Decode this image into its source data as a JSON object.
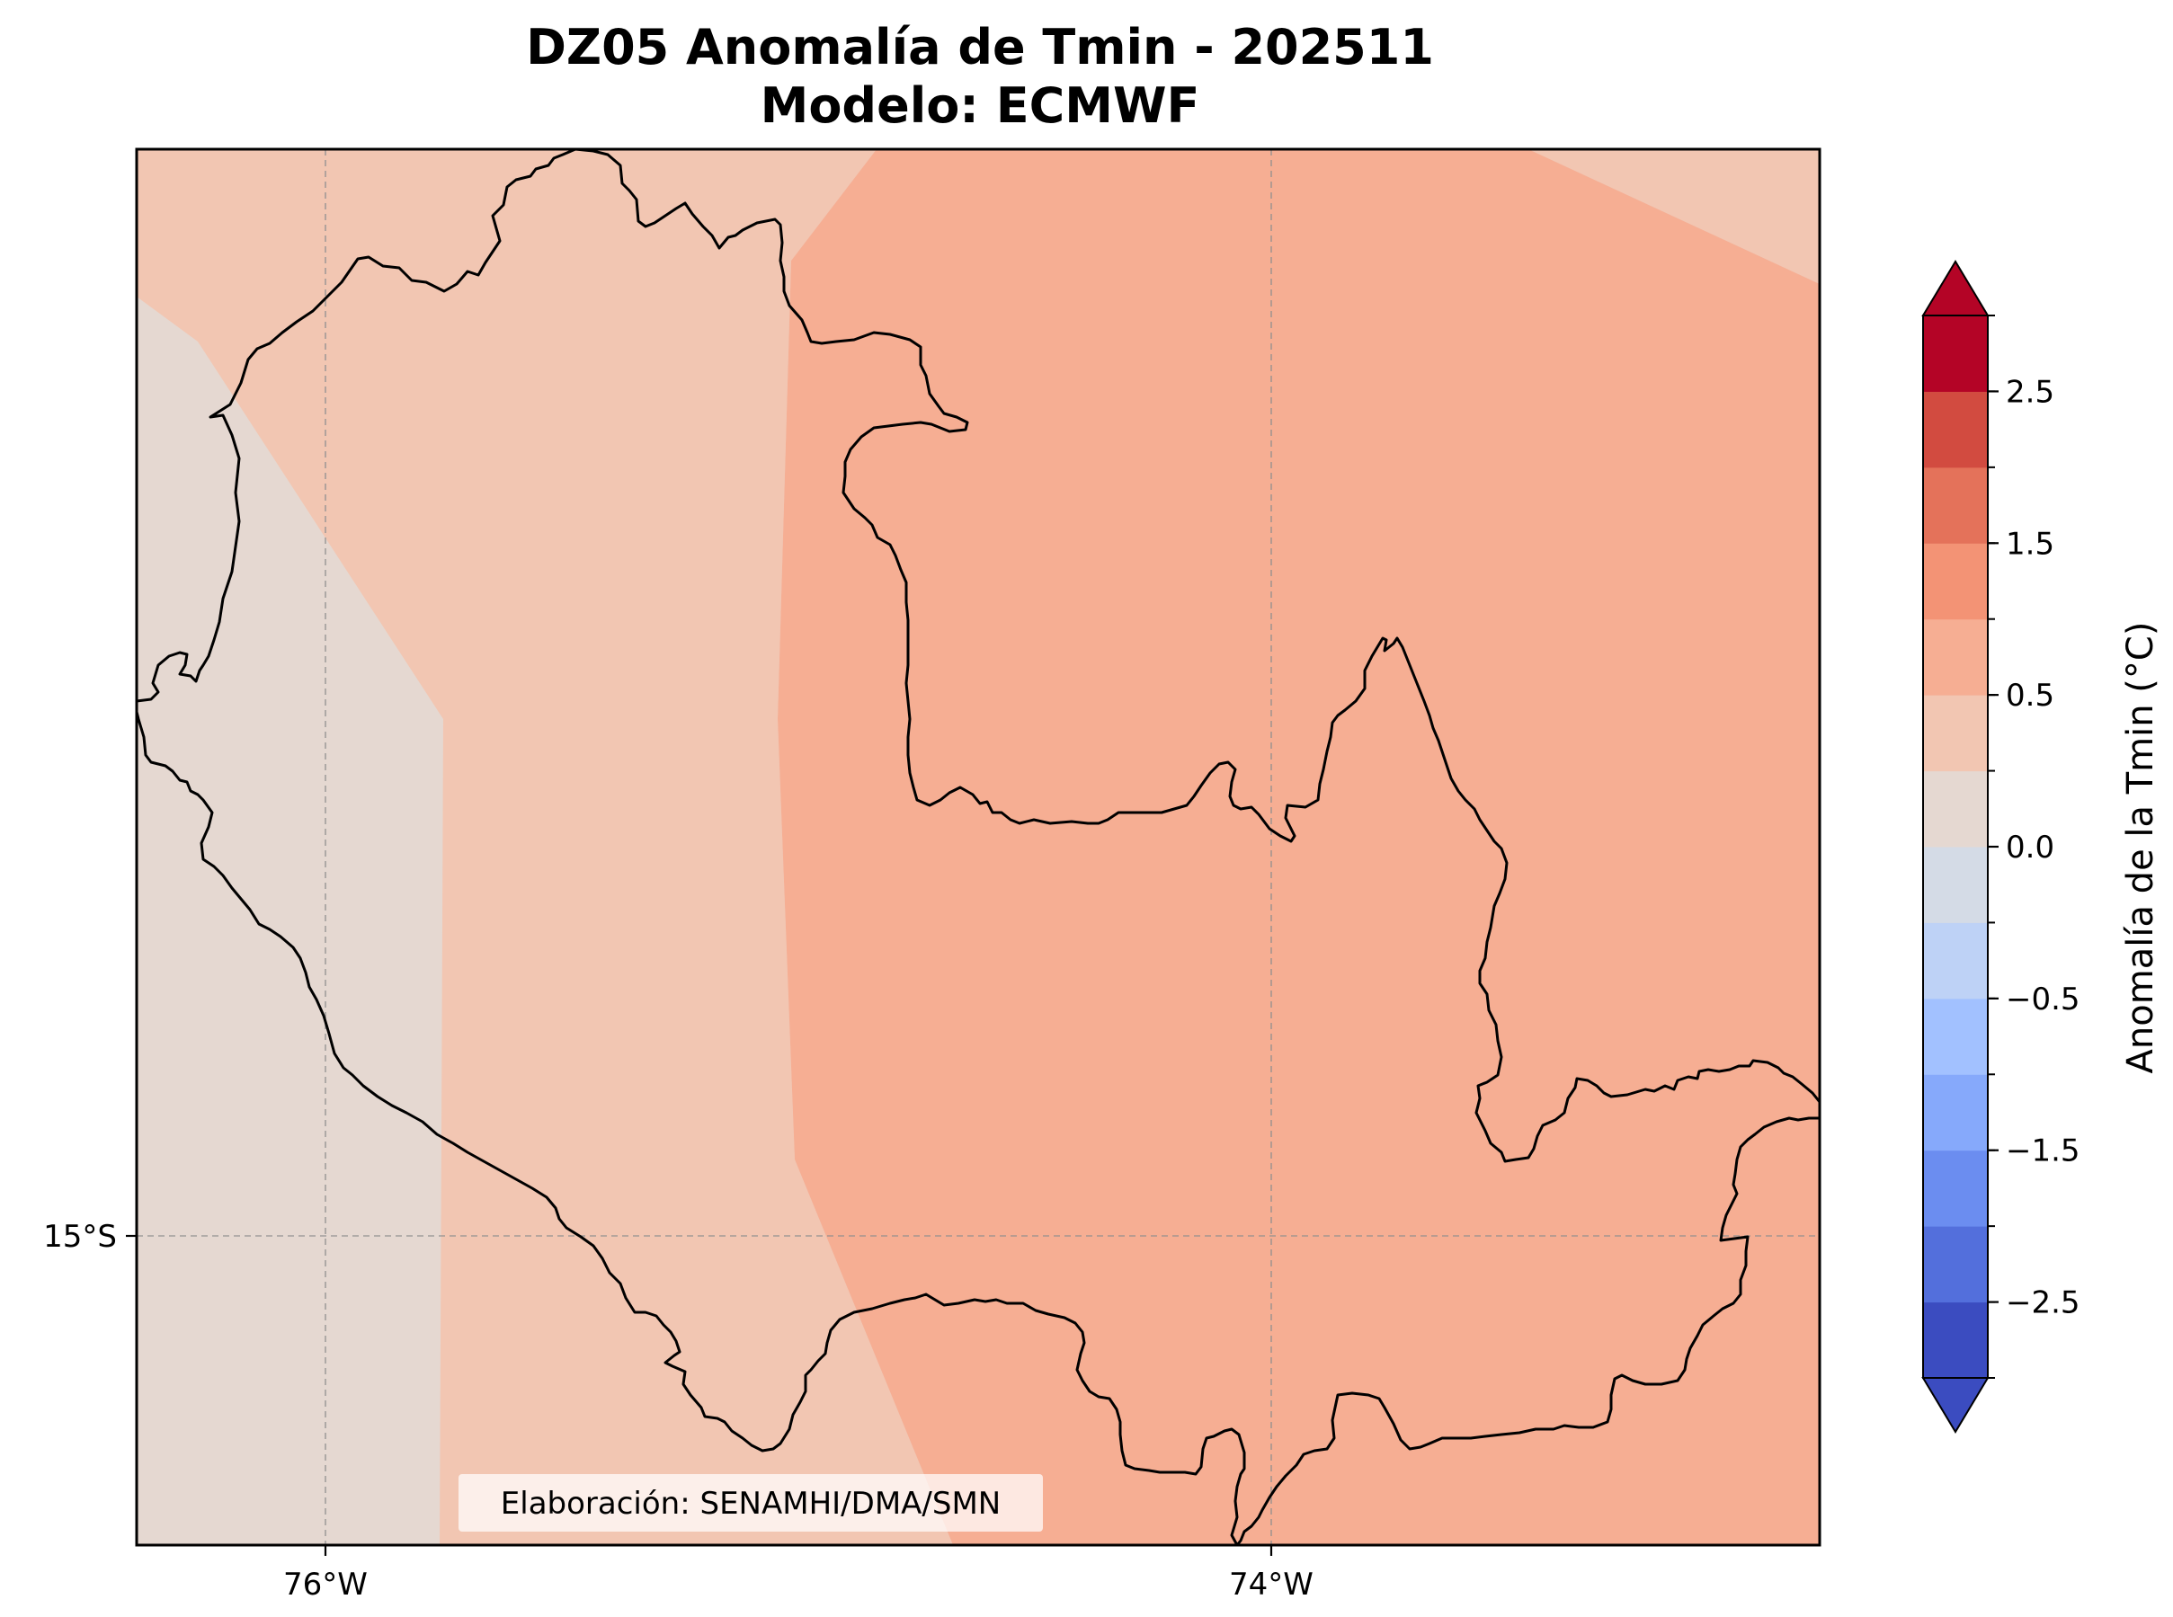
{
  "figure": {
    "title_line1": "DZ05 Anomalía de Tmin - 202511",
    "title_line2": "Modelo: ECMWF",
    "credit": "Elaboración: SENAMHI/DMA/SMN"
  },
  "map": {
    "lon_ticks": [
      "76°W",
      "74°W"
    ],
    "lat_ticks": [
      "15°S"
    ],
    "gridlines": true,
    "filled_regions": [
      {
        "level": "0.0 to 0.25",
        "color": "#e5d8d1"
      },
      {
        "level": "0.25 to 0.5",
        "color": "#f2c6b2"
      },
      {
        "level": "0.5 to 1.0",
        "color": "#f6ae93"
      }
    ]
  },
  "colorbar": {
    "label": "Anomalía de la Tmin (°C)",
    "tick_labels": [
      "2.5",
      "1.5",
      "0.5",
      "0.0",
      "−0.5",
      "−1.5",
      "−2.5"
    ],
    "tick_values": [
      2.5,
      1.5,
      0.5,
      0.0,
      -0.5,
      -1.5,
      -2.5
    ],
    "boundaries": [
      -2.75,
      -2.5,
      -2.0,
      -1.5,
      -1.0,
      -0.5,
      -0.25,
      0.0,
      0.25,
      0.5,
      1.0,
      1.5,
      2.0,
      2.5,
      2.75
    ],
    "extend": "both",
    "under_color": "#3b4cc0",
    "over_color": "#b40426",
    "bin_colors": [
      "#3b4cc0",
      "#536fdc",
      "#6b8df0",
      "#86a9fb",
      "#a2c1ff",
      "#bed2f6",
      "#d4dbe6",
      "#e5d8d1",
      "#f2c6b2",
      "#f6ae93",
      "#f39375",
      "#e4725a",
      "#d24b40",
      "#b40426"
    ]
  }
}
